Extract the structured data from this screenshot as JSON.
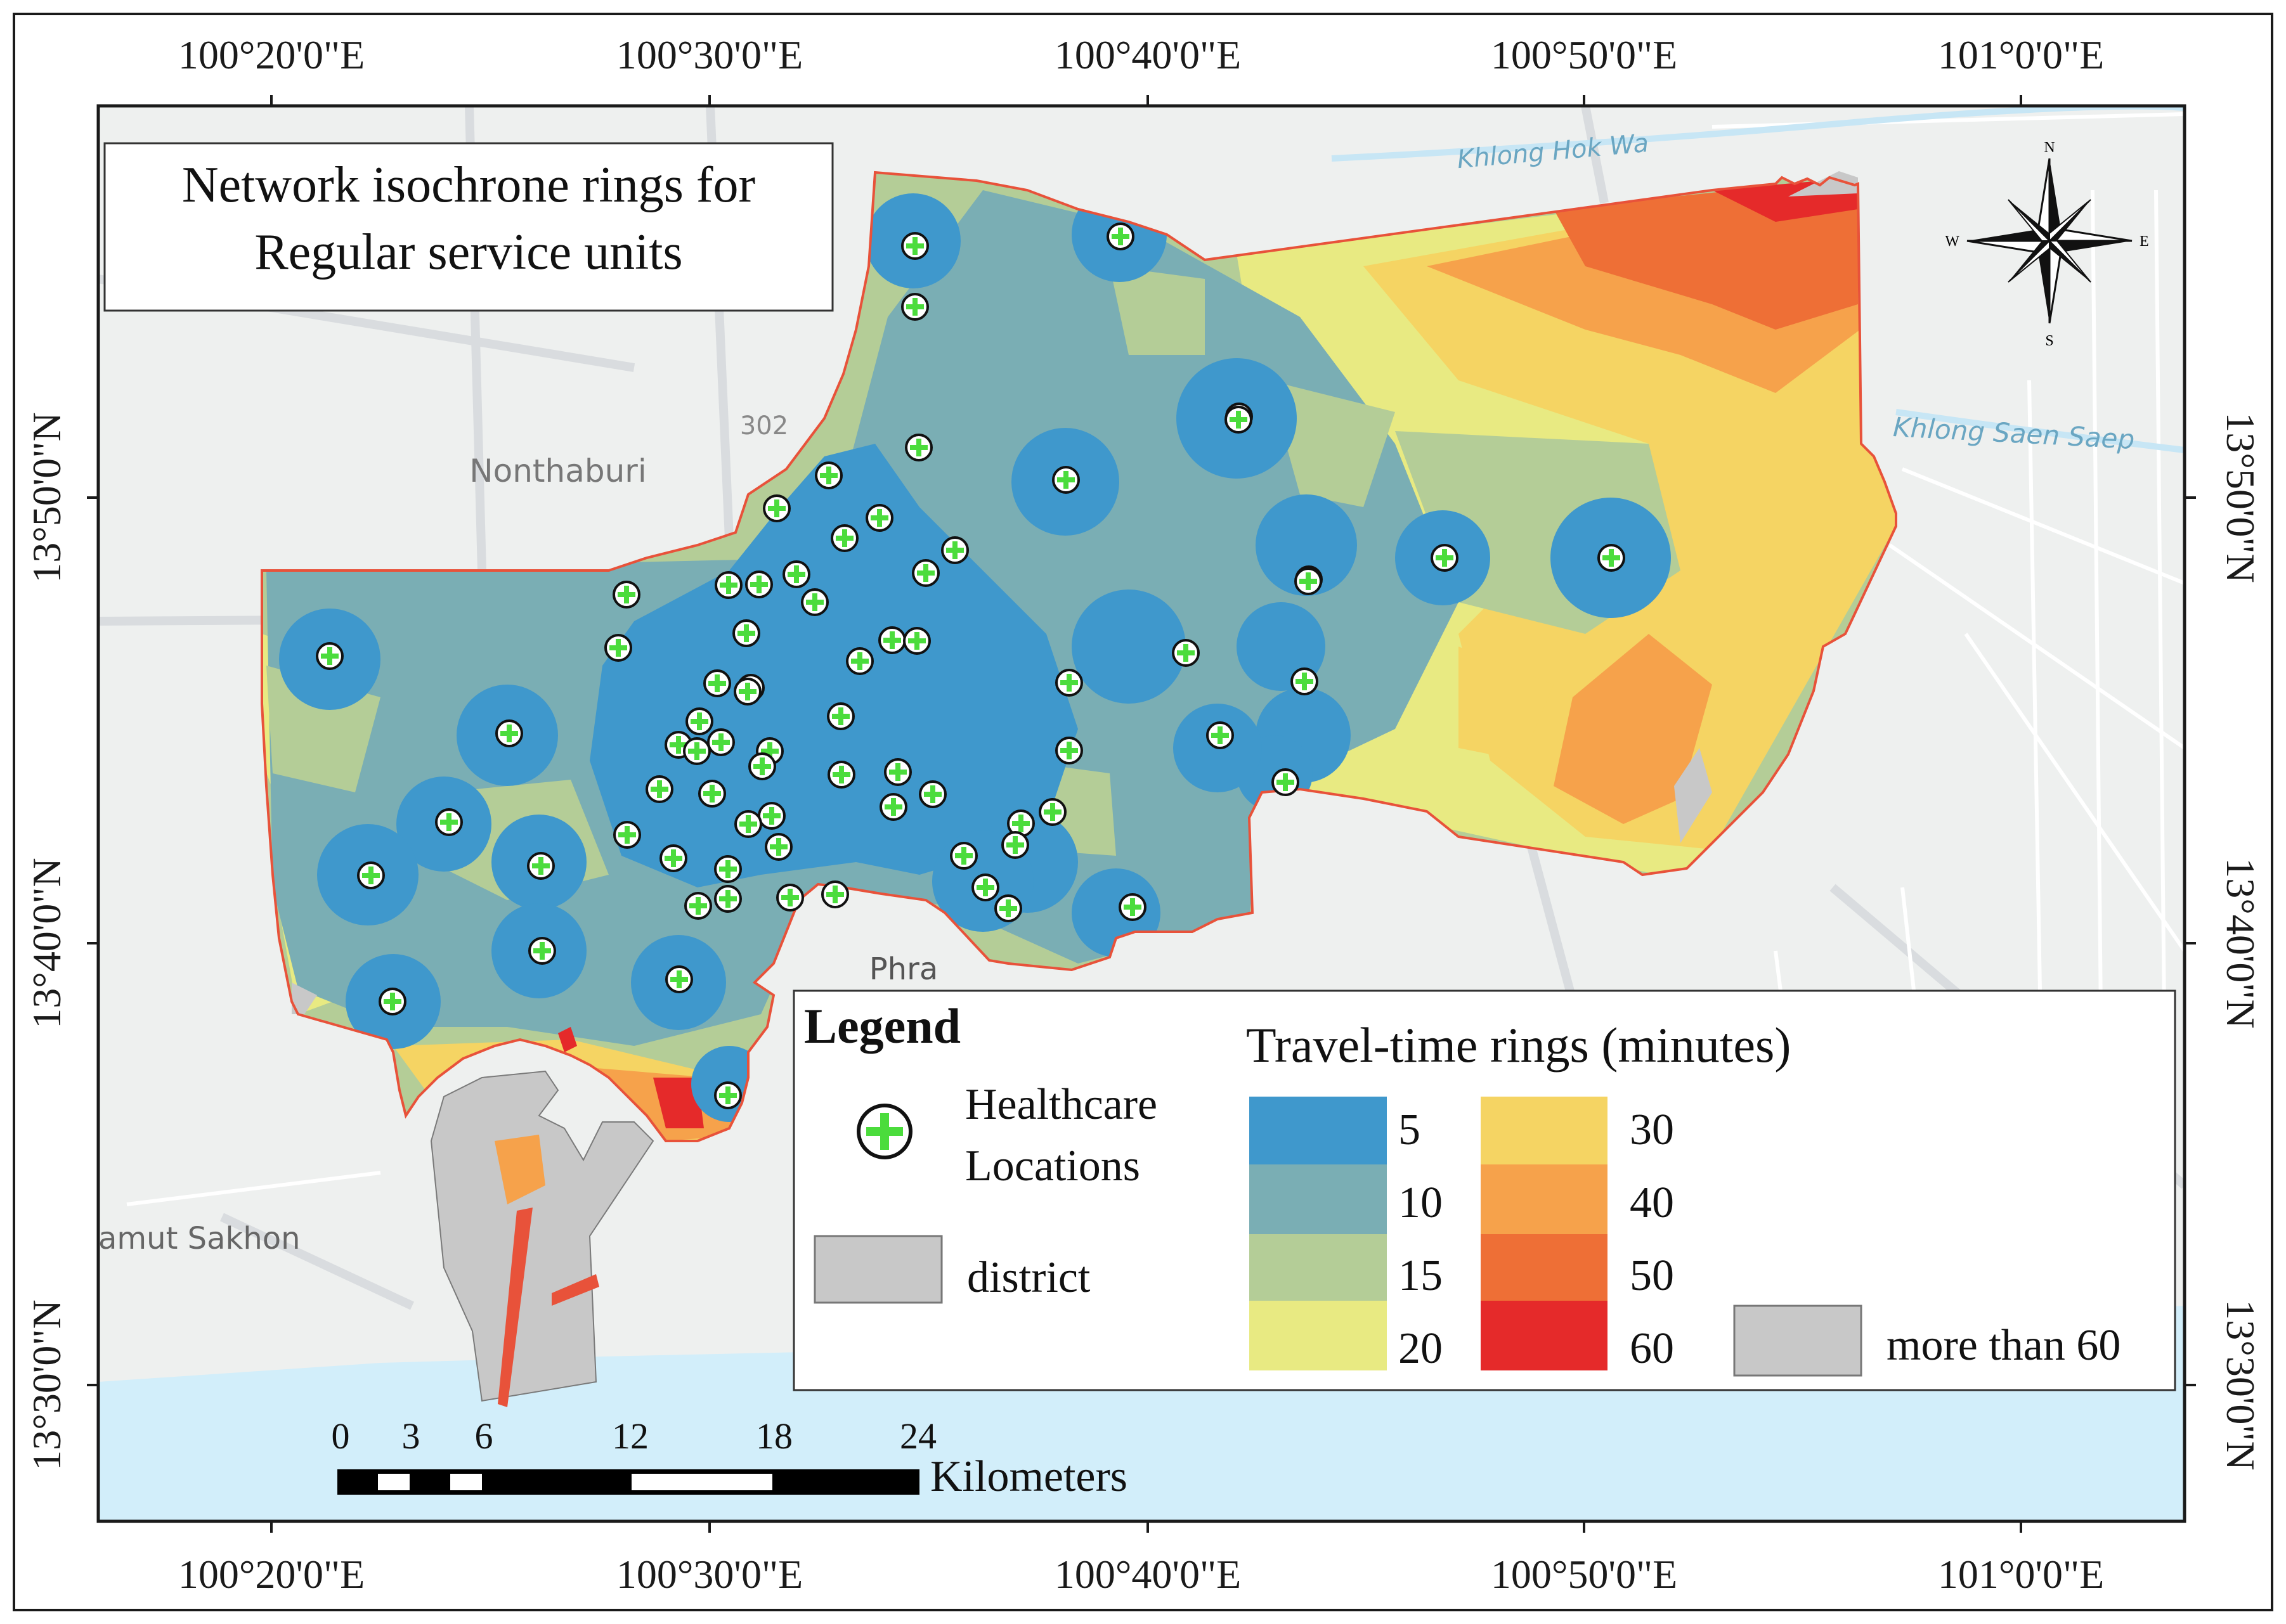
{
  "title": {
    "line1": "Network isochrone rings for",
    "line2": "Regular service units"
  },
  "coordinates": {
    "top_lon_labels": [
      "100°20'0\"E",
      "100°30'0\"E",
      "100°40'0\"E",
      "100°50'0\"E",
      "101°0'0\"E"
    ],
    "bottom_lon_labels": [
      "100°20'0\"E",
      "100°30'0\"E",
      "100°40'0\"E",
      "100°50'0\"E",
      "101°0'0\"E"
    ],
    "left_lat_labels": [
      "13°50'0\"N",
      "13°40'0\"N",
      "13°30'0\"N"
    ],
    "right_lat_labels": [
      "13°50'0\"N",
      "13°40'0\"N",
      "13°30'0\"N"
    ]
  },
  "basemap_labels": {
    "nonthaburi": "Nonthaburi",
    "road": "302",
    "khlong_hok_wa": "Khlong Hok Wa",
    "khlong_saen_saep": "Khlong Saen Saep",
    "phra": "Phra",
    "samut_sakhon": "amut Sakhon"
  },
  "north_arrow": {
    "n": "N",
    "s": "S",
    "e": "E",
    "w": "W"
  },
  "legend": {
    "heading": "Legend",
    "healthcare_line1": "Healthcare",
    "healthcare_line2": "Locations",
    "district": "district",
    "rings_title": "Travel-time rings (minutes)",
    "rings": [
      {
        "label": "5",
        "color": "#3f98cc"
      },
      {
        "label": "10",
        "color": "#7aaeb4"
      },
      {
        "label": "15",
        "color": "#b4cd97"
      },
      {
        "label": "20",
        "color": "#e8ea82"
      },
      {
        "label": "30",
        "color": "#f5d463"
      },
      {
        "label": "40",
        "color": "#f6a24b"
      },
      {
        "label": "50",
        "color": "#ee6f36"
      },
      {
        "label": "60",
        "color": "#e52a2a"
      }
    ],
    "more_than_60": "more than 60",
    "more_than_60_color": "#c8c8c8",
    "district_color": "#c8c8c8"
  },
  "scale_bar": {
    "ticks": [
      "0",
      "3",
      "6",
      "12",
      "18",
      "24"
    ],
    "unit": "Kilometers"
  },
  "colors": {
    "basemap": "#eef0ef",
    "water": "#d2eefa",
    "boundary": "#e8523a",
    "marker_fill": "#4bdc3c"
  },
  "healthcare_location_count": 86
}
